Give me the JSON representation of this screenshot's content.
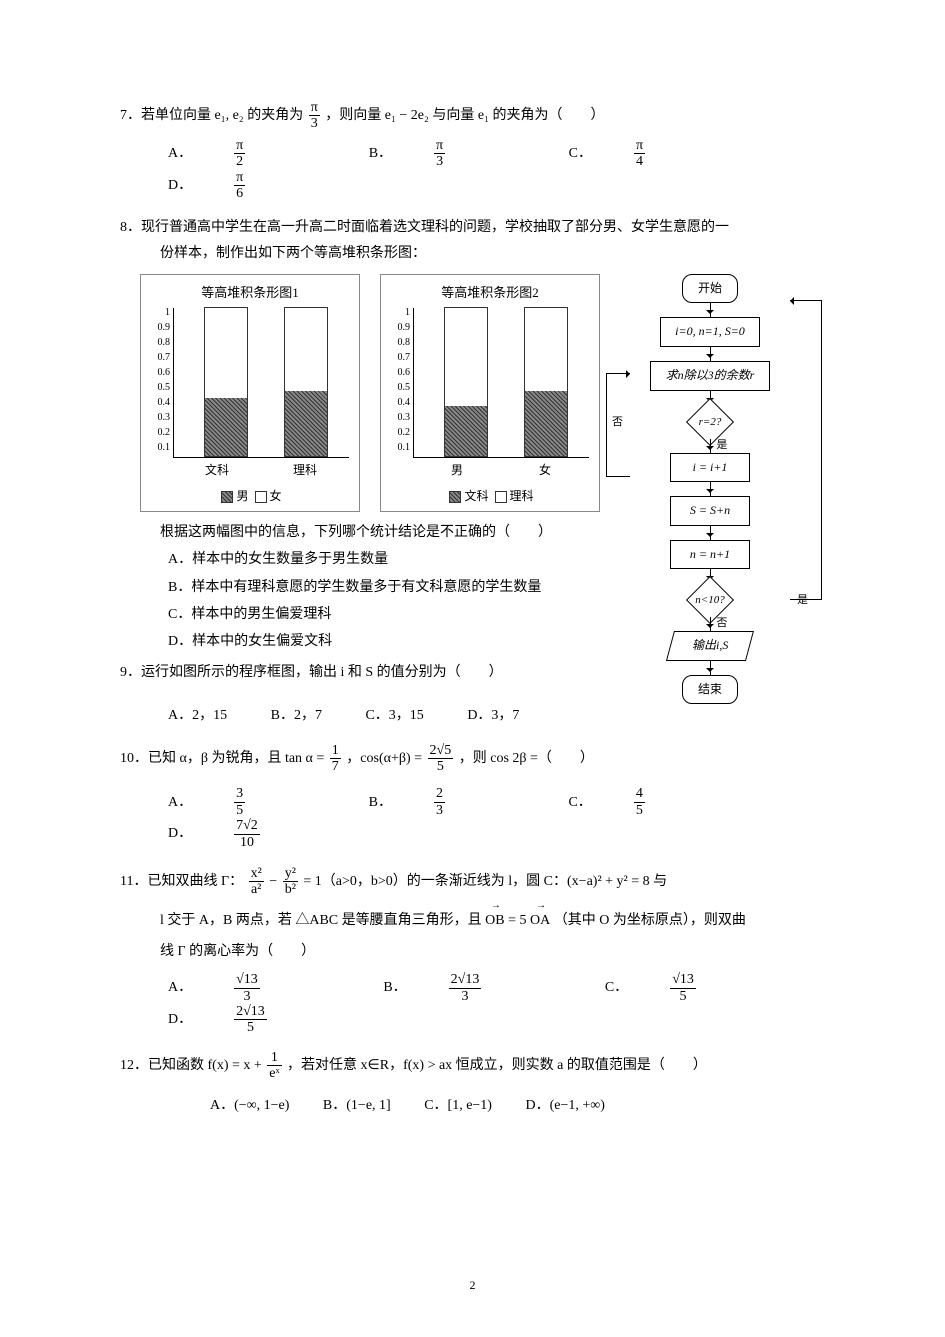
{
  "q7": {
    "text_pre": "7．若单位向量 e₁, e₂ 的夹角为 ",
    "text_mid": "，则向量 e₁ − 2e₂ 与向量 e₁ 的夹角为（　　）",
    "angle_num": "π",
    "angle_den": "3",
    "optA": "A．",
    "optA_num": "π",
    "optA_den": "2",
    "optB": "B．",
    "optB_num": "π",
    "optB_den": "3",
    "optC": "C．",
    "optC_num": "π",
    "optC_den": "4",
    "optD": "D．",
    "optD_num": "π",
    "optD_den": "6"
  },
  "q8": {
    "text1": "8．现行普通高中学生在高一升高二时面临着选文理科的问题，学校抽取了部分男、女学生意愿的一",
    "text2": "份样本，制作出如下两个等高堆积条形图：",
    "conclusion_line": "根据这两幅图中的信息，下列哪个统计结论是不正确的（　　）",
    "optA": "A．样本中的女生数量多于男生数量",
    "optB": "B．样本中有理科意愿的学生数量多于有文科意愿的学生数量",
    "optC": "C．样本中的男生偏爱理科",
    "optD": "D．样本中的女生偏爱文科",
    "chart1": {
      "title": "等高堆积条形图1",
      "yticks": [
        "1",
        "0.9",
        "0.8",
        "0.7",
        "0.6",
        "0.5",
        "0.4",
        "0.3",
        "0.2",
        "0.1"
      ],
      "bars": [
        {
          "label": "文科",
          "lower": 0.4,
          "upper": 0.6
        },
        {
          "label": "理科",
          "lower": 0.45,
          "upper": 0.55
        }
      ],
      "legend_a": "男",
      "legend_b": "女",
      "lower_fill": "hatched",
      "upper_fill": "#ffffff",
      "border_color": "#333333"
    },
    "chart2": {
      "title": "等高堆积条形图2",
      "yticks": [
        "1",
        "0.9",
        "0.8",
        "0.7",
        "0.6",
        "0.5",
        "0.4",
        "0.3",
        "0.2",
        "0.1"
      ],
      "bars": [
        {
          "label": "男",
          "lower": 0.35,
          "upper": 0.65
        },
        {
          "label": "女",
          "lower": 0.45,
          "upper": 0.55
        }
      ],
      "legend_a": "文科",
      "legend_b": "理科",
      "lower_fill": "hatched",
      "upper_fill": "#ffffff",
      "border_color": "#333333"
    }
  },
  "q9": {
    "text": "9．运行如图所示的程序框图，输出 i 和 S 的值分别为（　　）",
    "optA": "A．2，15",
    "optB": "B．2，7",
    "optC": "C．3，15",
    "optD": "D．3，7",
    "flowchart": {
      "start": "开始",
      "init": "i=0, n=1, S=0",
      "step1": "求n除以3的余数r",
      "cond1": "r=2?",
      "cond1_no": "否",
      "cond1_yes": "是",
      "step2": "i = i+1",
      "step3": "S = S+n",
      "step4": "n = n+1",
      "cond2": "n<10?",
      "cond2_yes": "是",
      "cond2_no": "否",
      "output": "输出i,S",
      "end": "结束"
    }
  },
  "q10": {
    "text_a": "10．已知 α，β 为锐角，且 tan α = ",
    "tan_num": "1",
    "tan_den": "7",
    "text_b": "，cos(α+β) = ",
    "cos_num": "2√5",
    "cos_den": "5",
    "text_c": "，则 cos 2β =（　　）",
    "optA": "A．",
    "optA_num": "3",
    "optA_den": "5",
    "optB": "B．",
    "optB_num": "2",
    "optB_den": "3",
    "optC": "C．",
    "optC_num": "4",
    "optC_den": "5",
    "optD": "D．",
    "optD_num": "7√2",
    "optD_den": "10"
  },
  "q11": {
    "text_a": "11．已知双曲线 Γ：",
    "text_b": " = 1（a>0，b>0）的一条渐近线为 l，圆 C：(x−a)² + y² = 8 与",
    "text_c": "l 交于 A，B 两点，若 △ABC 是等腰直角三角形，且 ",
    "vec_eq_left": "OB",
    "vec_eq_mid": " = 5",
    "vec_eq_right": "OA",
    "text_d": "（其中 O 为坐标原点），则双曲",
    "text_e": "线 Γ 的离心率为（　　）",
    "hyp_n1": "x²",
    "hyp_d1": "a²",
    "hyp_n2": "y²",
    "hyp_d2": "b²",
    "optA": "A．",
    "optA_num": "√13",
    "optA_den": "3",
    "optB": "B．",
    "optB_num": "2√13",
    "optB_den": "3",
    "optC": "C．",
    "optC_num": "√13",
    "optC_den": "5",
    "optD": "D．",
    "optD_num": "2√13",
    "optD_den": "5"
  },
  "q12": {
    "text_a": "12．已知函数 f(x) = x + ",
    "f_num": "1",
    "f_den": "eˣ",
    "text_b": "，若对任意 x∈R，f(x) > ax 恒成立，则实数 a 的取值范围是（　　）",
    "optA": "A．(−∞, 1−e)",
    "optB": "B．(1−e, 1]",
    "optC": "C．[1, e−1)",
    "optD": "D．(e−1, +∞)"
  },
  "page_number": "2"
}
